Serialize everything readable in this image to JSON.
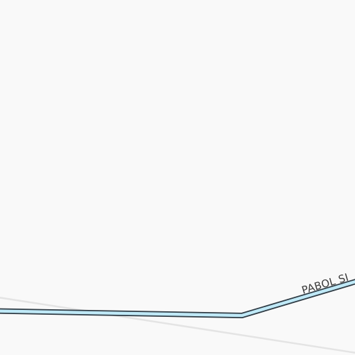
{
  "map": {
    "colors": {
      "land": "#f9f9f9",
      "minor_road": "#e4e4e4",
      "waterway_fill": "#bfe9f7",
      "waterway_casing": "#2f3b44",
      "label_text": "#3a3a3a"
    },
    "features": {
      "minor_road": {
        "kind": "minor-road"
      },
      "waterway": {
        "kind": "waterway"
      }
    },
    "labels": {
      "waterway_name": "PABOL SI"
    }
  }
}
